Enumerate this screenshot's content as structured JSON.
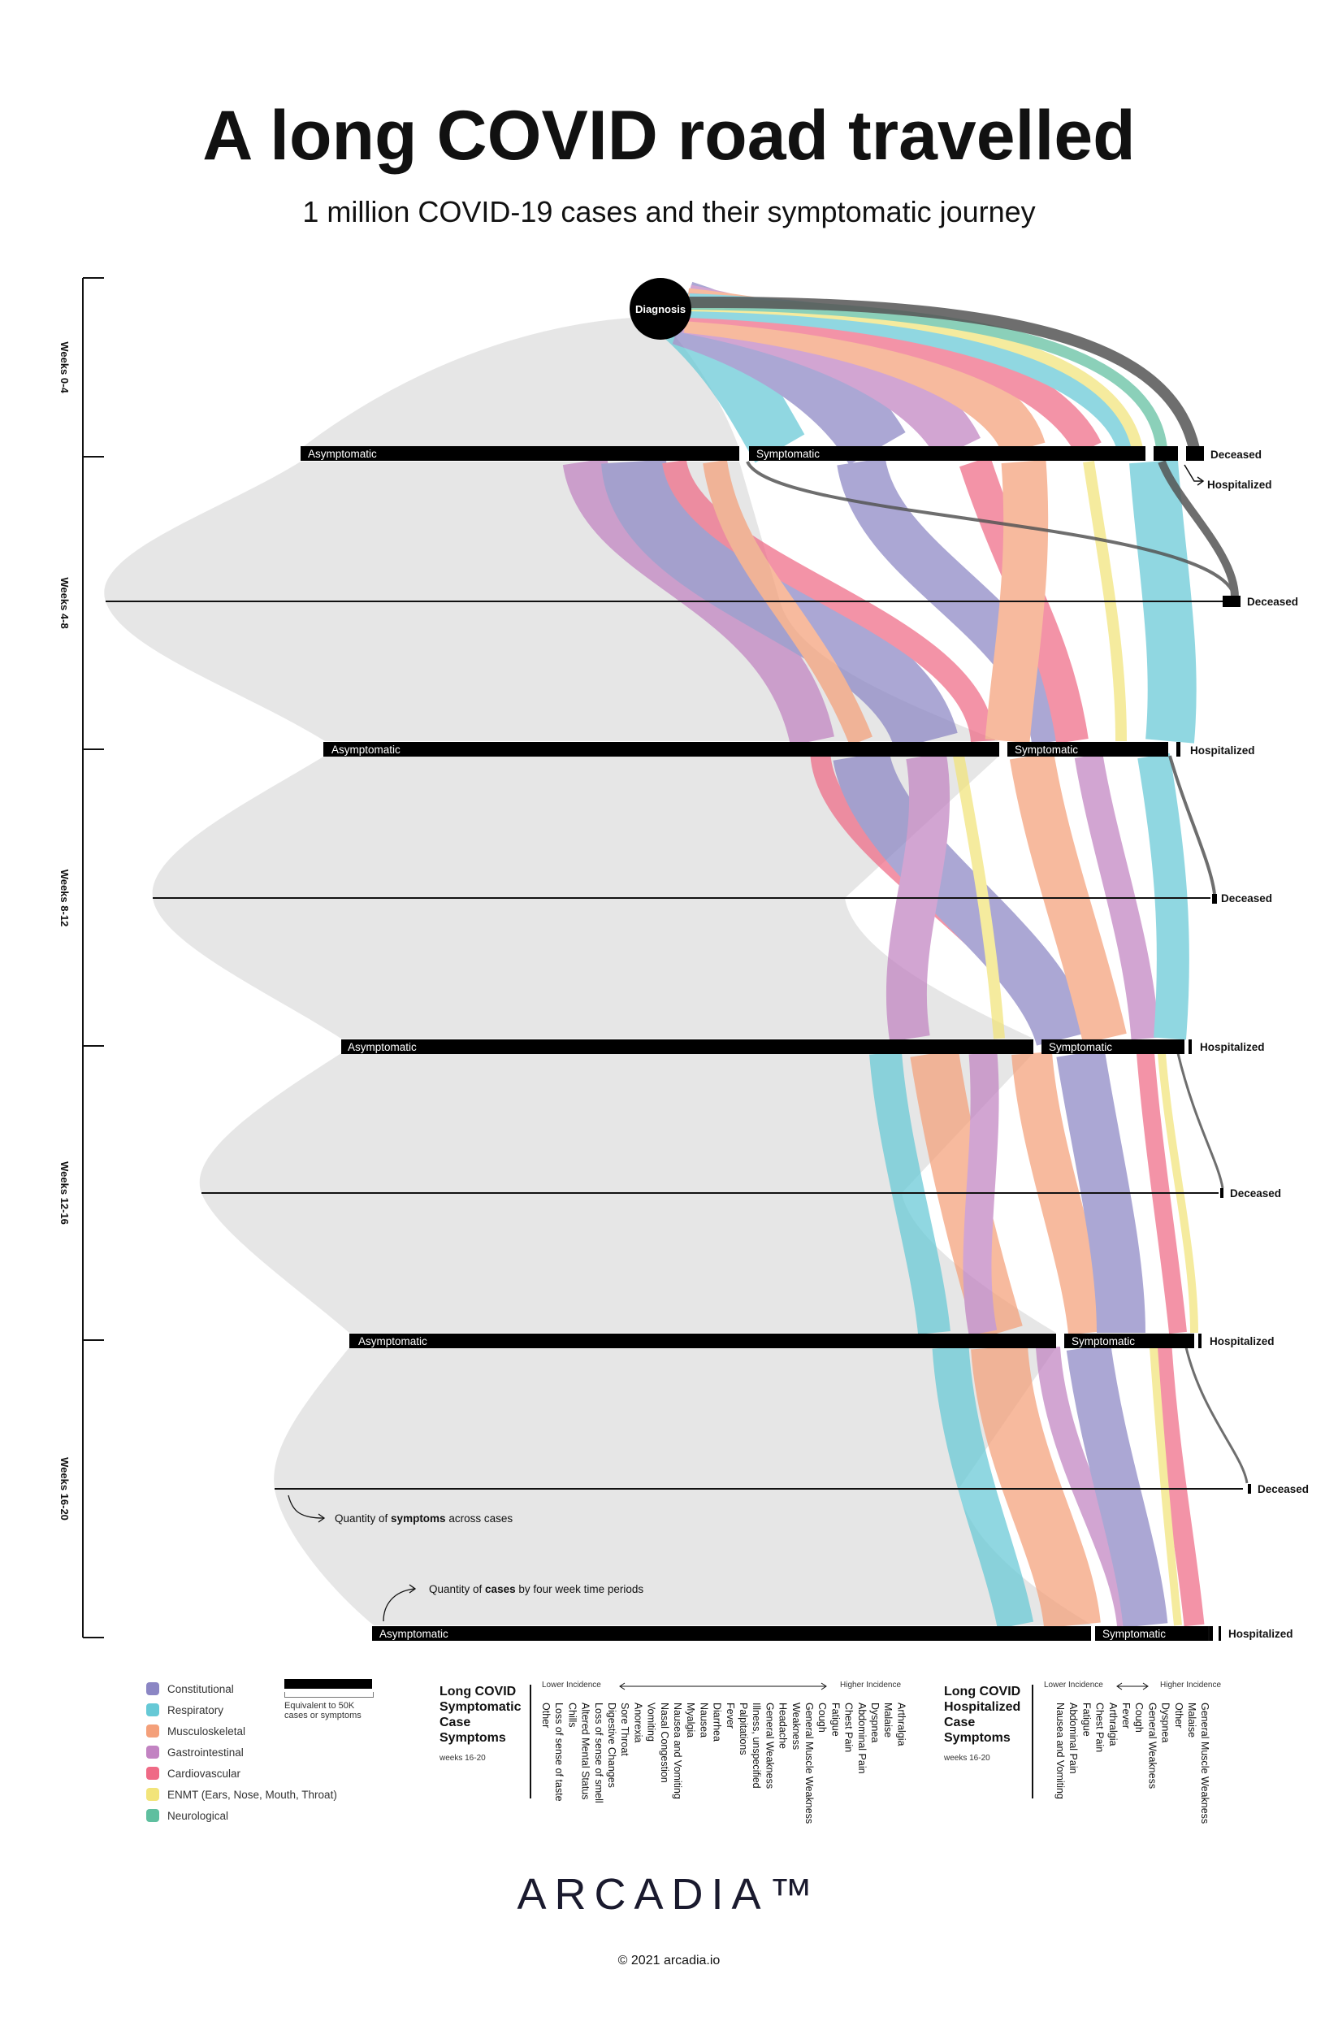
{
  "header": {
    "title": "A long COVID road travelled",
    "subtitle": "1 million COVID-19 cases and their symptomatic journey"
  },
  "colors": {
    "constitutional": "#8b86c4",
    "respiratory": "#66c9d6",
    "musculoskeletal": "#f4a07a",
    "gastrointestinal": "#c283c2",
    "cardiovascular": "#ef6a86",
    "enmt": "#f2e47a",
    "neurological": "#5fbf9f",
    "deceased": "#555555",
    "background_flow": "#e8e8e8"
  },
  "diagram": {
    "diagnosis_label": "Diagnosis",
    "periods": [
      "Weeks 0-4",
      "Weeks 4-8",
      "Weeks 8-12",
      "Weeks 12-16",
      "Weeks 16-20"
    ],
    "asymptomatic_label": "Asymptomatic",
    "symptomatic_label": "Symptomatic",
    "deceased_label": "Deceased",
    "hospitalized_label": "Hospitalized",
    "annotation_symptoms_prefix": "Quantity of ",
    "annotation_symptoms_bold": "symptoms",
    "annotation_symptoms_suffix": " across cases",
    "annotation_cases_prefix": "Quantity of ",
    "annotation_cases_bold": "cases",
    "annotation_cases_suffix": " by four week time periods"
  },
  "legend": {
    "items": [
      {
        "label": "Constitutional",
        "color": "#8b86c4"
      },
      {
        "label": "Respiratory",
        "color": "#66c9d6"
      },
      {
        "label": "Musculoskeletal",
        "color": "#f4a07a"
      },
      {
        "label": "Gastrointestinal",
        "color": "#c283c2"
      },
      {
        "label": "Cardiovascular",
        "color": "#ef6a86"
      },
      {
        "label": "ENMT (Ears, Nose, Mouth, Throat)",
        "color": "#f2e47a"
      },
      {
        "label": "Neurological",
        "color": "#5fbf9f"
      }
    ],
    "scale_line1": "Equivalent to 50K",
    "scale_line2": "cases or symptoms"
  },
  "symptomatic_list": {
    "heading": "Long COVID Symptomatic Case Symptoms",
    "weeks": "weeks 16-20",
    "lower": "Lower Incidence",
    "higher": "Higher Incidence",
    "symptoms": [
      "Other",
      "Loss of sense of taste",
      "Chills",
      "Altered Mental Status",
      "Loss of sense of smell",
      "Digestive Changes",
      "Sore Throat",
      "Anorexia",
      "Vomiting",
      "Nasal Congestion",
      "Nausea and Vomiting",
      "Myalgia",
      "Nausea",
      "Diarrhea",
      "Fever",
      "Palpitations",
      "Illness, unspecified",
      "General Weakness",
      "Headache",
      "Weakness",
      "General Muscle Weakness",
      "Cough",
      "Fatigue",
      "Chest Pain",
      "Abdominal Pain",
      "Dyspnea",
      "Malaise",
      "Arthralgia"
    ]
  },
  "hospitalized_list": {
    "heading": "Long COVID Hospitalized Case Symptoms",
    "weeks": "weeks 16-20",
    "lower": "Lower Incidence",
    "higher": "Higher Incidence",
    "symptoms": [
      "Nausea and Vomiting",
      "Abdominal Pain",
      "Fatigue",
      "Chest Pain",
      "Arthralgia",
      "Fever",
      "Cough",
      "General Weakness",
      "Dyspnea",
      "Other",
      "Malaise",
      "General Muscle Weakness"
    ]
  },
  "footer": {
    "logo": "ARCADIA™",
    "copyright": "© 2021 arcadia.io"
  }
}
